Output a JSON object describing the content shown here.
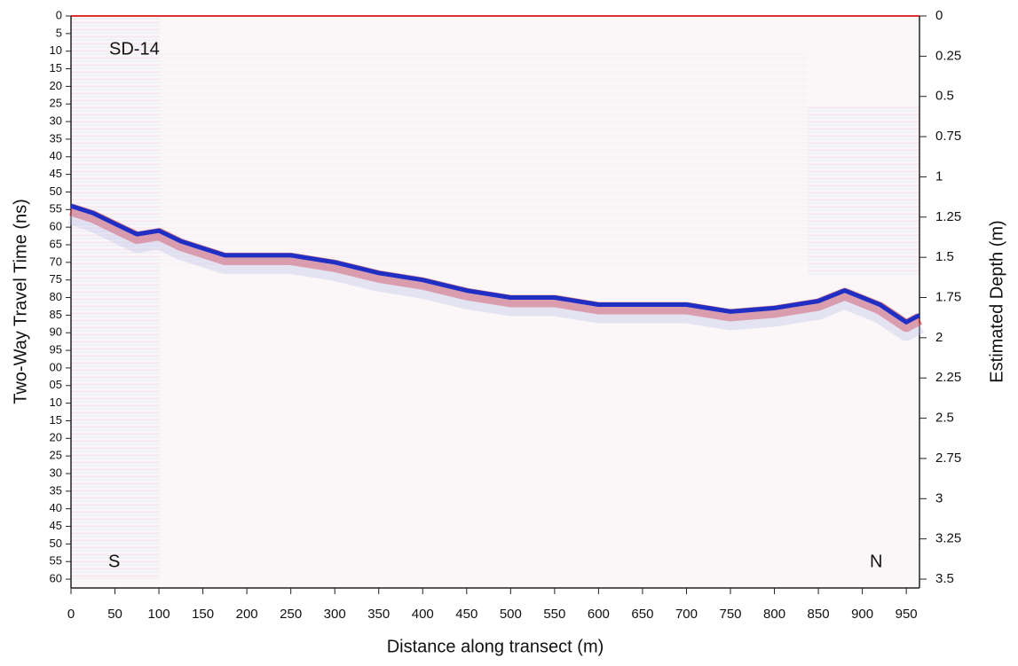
{
  "chart_data": {
    "type": "line",
    "title": "SD-14",
    "annotations": [
      "S",
      "N"
    ],
    "x_label": "Distance along transect  (m)",
    "y_label": "Two-Way Travel Time (ns)",
    "y2_label": "Estimated Depth (m)",
    "y_reversed": true,
    "color": "#1f2fc4",
    "x": [
      0,
      25,
      50,
      75,
      100,
      125,
      150,
      175,
      200,
      250,
      300,
      350,
      400,
      450,
      500,
      550,
      600,
      650,
      700,
      750,
      800,
      850,
      880,
      900,
      920,
      950,
      965
    ],
    "values": [
      54,
      56,
      59,
      62,
      61,
      64,
      66,
      68,
      68,
      68,
      70,
      73,
      75,
      78,
      80,
      80,
      82,
      82,
      82,
      84,
      83,
      81,
      78,
      80,
      82,
      87,
      85
    ],
    "xlim": [
      0,
      965
    ],
    "xticks": [
      0,
      50,
      100,
      150,
      200,
      250,
      300,
      350,
      400,
      450,
      500,
      550,
      600,
      650,
      700,
      750,
      800,
      850,
      900,
      950
    ],
    "ylim": [
      0,
      162.5
    ],
    "yticks": [
      0,
      5,
      10,
      15,
      20,
      25,
      30,
      35,
      40,
      45,
      50,
      55,
      60,
      65,
      70,
      75,
      80,
      85,
      90,
      95,
      {
        "value": 100,
        "label": "00"
      },
      {
        "value": 105,
        "label": "05"
      },
      {
        "value": 110,
        "label": "10"
      },
      {
        "value": 115,
        "label": "15"
      },
      {
        "value": 120,
        "label": "20"
      },
      {
        "value": 125,
        "label": "25"
      },
      {
        "value": 130,
        "label": "30"
      },
      {
        "value": 135,
        "label": "35"
      },
      {
        "value": 140,
        "label": "40"
      },
      {
        "value": 145,
        "label": "45"
      },
      {
        "value": 150,
        "label": "50"
      },
      {
        "value": 155,
        "label": "55"
      },
      {
        "value": 160,
        "label": "60"
      }
    ],
    "y2lim": [
      0,
      3.555
    ],
    "y2ticks": [
      0,
      0.25,
      0.5,
      0.75,
      1,
      1.25,
      1.5,
      1.75,
      2,
      2.25,
      2.5,
      2.75,
      3,
      3.25,
      3.5
    ]
  }
}
